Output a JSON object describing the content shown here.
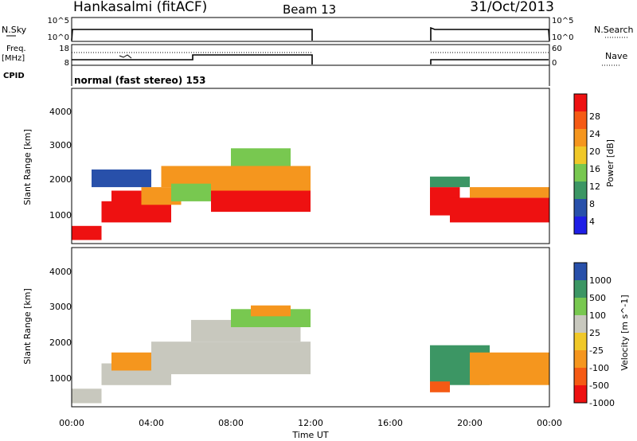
{
  "header": {
    "title": "Hankasalmi (fitACF)",
    "beam": "Beam 13",
    "date": "31/Oct/2013"
  },
  "nsky_panel": {
    "left_label": "N.Sky",
    "right_label": "N.Search",
    "tick_top": "10^5",
    "tick_bottom": "10^0",
    "right_tick_top": "10^5",
    "right_tick_bottom": "10^0"
  },
  "freq_panel": {
    "left_label_top": "Freq.",
    "left_label_unit": "[MHz]",
    "tick_top": "18",
    "tick_bottom": "8",
    "right_label": "Nave",
    "right_tick_top": "60",
    "right_tick_bottom": "0"
  },
  "cpid_panel": {
    "label": "CPID",
    "mode": "normal (fast stereo) 153"
  },
  "x_axis": {
    "label": "Time UT",
    "ticks": [
      "00:00",
      "04:00",
      "08:00",
      "12:00",
      "16:00",
      "20:00",
      "00:00"
    ]
  },
  "range_axis": {
    "label": "Slant Range [km]",
    "ticks": [
      "1000",
      "2000",
      "3000",
      "4000"
    ]
  },
  "colors": {
    "red": "#ee1111",
    "orange_red": "#f55a14",
    "orange": "#f5961e",
    "yellow_orange": "#f0c828",
    "green": "#78c850",
    "teal": "#3c9664",
    "blue": "#2850aa",
    "bright_blue": "#1e1ee6",
    "gray": "#c8c8be"
  },
  "chart_data": [
    {
      "type": "heatmap",
      "name": "power",
      "xlim": [
        0,
        24
      ],
      "ylim": [
        200,
        4600
      ],
      "colorbar": {
        "label": "Power [dB]",
        "ticks": [
          "4",
          "8",
          "12",
          "16",
          "20",
          "24",
          "28"
        ],
        "colors": [
          "#1e1ee6",
          "#2850aa",
          "#3c9664",
          "#78c850",
          "#f0c828",
          "#f5961e",
          "#f55a14",
          "#ee1111"
        ]
      },
      "regions": [
        {
          "x0": 0.0,
          "x1": 1.5,
          "y0": 300,
          "y1": 700,
          "level": "red"
        },
        {
          "x0": 1.5,
          "x1": 5.0,
          "y0": 800,
          "y1": 1400,
          "level": "red"
        },
        {
          "x0": 2.0,
          "x1": 3.5,
          "y0": 1300,
          "y1": 1700,
          "level": "red"
        },
        {
          "x0": 3.5,
          "x1": 5.5,
          "y0": 1300,
          "y1": 1800,
          "level": "orange"
        },
        {
          "x0": 4.5,
          "x1": 7.5,
          "y0": 1800,
          "y1": 2400,
          "level": "orange"
        },
        {
          "x0": 5.0,
          "x1": 9.0,
          "y0": 1400,
          "y1": 1900,
          "level": "green"
        },
        {
          "x0": 7.0,
          "x1": 12.0,
          "y0": 1100,
          "y1": 1700,
          "level": "red"
        },
        {
          "x0": 7.0,
          "x1": 12.0,
          "y0": 1700,
          "y1": 2400,
          "level": "orange"
        },
        {
          "x0": 8.0,
          "x1": 11.0,
          "y0": 2400,
          "y1": 2900,
          "level": "green"
        },
        {
          "x0": 1.0,
          "x1": 4.0,
          "y0": 1800,
          "y1": 2300,
          "level": "blue"
        },
        {
          "x0": 18.0,
          "x1": 19.5,
          "y0": 1000,
          "y1": 1800,
          "level": "red"
        },
        {
          "x0": 19.0,
          "x1": 24.0,
          "y0": 800,
          "y1": 1500,
          "level": "red"
        },
        {
          "x0": 20.0,
          "x1": 24.0,
          "y0": 1500,
          "y1": 1800,
          "level": "orange"
        },
        {
          "x0": 18.0,
          "x1": 20.0,
          "y0": 1800,
          "y1": 2100,
          "level": "teal"
        }
      ]
    },
    {
      "type": "heatmap",
      "name": "velocity",
      "xlim": [
        0,
        24
      ],
      "ylim": [
        200,
        4600
      ],
      "colorbar": {
        "label": "Velocity [m s^-1]",
        "ticks": [
          "1000",
          "500",
          "100",
          "25",
          "-25",
          "-100",
          "-500",
          "-1000"
        ],
        "colors": [
          "#2850aa",
          "#3c9664",
          "#78c850",
          "#c8c8be",
          "#f0c828",
          "#f5961e",
          "#f55a14",
          "#ee1111"
        ]
      },
      "regions": [
        {
          "x0": 0.0,
          "x1": 1.5,
          "y0": 300,
          "y1": 700,
          "level": "gray"
        },
        {
          "x0": 1.5,
          "x1": 5.0,
          "y0": 800,
          "y1": 1400,
          "level": "gray"
        },
        {
          "x0": 2.0,
          "x1": 4.0,
          "y0": 1200,
          "y1": 1700,
          "level": "orange"
        },
        {
          "x0": 4.0,
          "x1": 12.0,
          "y0": 1100,
          "y1": 2000,
          "level": "gray"
        },
        {
          "x0": 6.0,
          "x1": 11.5,
          "y0": 2000,
          "y1": 2600,
          "level": "gray"
        },
        {
          "x0": 8.0,
          "x1": 12.0,
          "y0": 2400,
          "y1": 2900,
          "level": "green"
        },
        {
          "x0": 9.0,
          "x1": 11.0,
          "y0": 2700,
          "y1": 3000,
          "level": "orange"
        },
        {
          "x0": 18.0,
          "x1": 21.0,
          "y0": 800,
          "y1": 1900,
          "level": "teal"
        },
        {
          "x0": 20.0,
          "x1": 24.0,
          "y0": 800,
          "y1": 1700,
          "level": "orange"
        },
        {
          "x0": 18.0,
          "x1": 19.0,
          "y0": 600,
          "y1": 900,
          "level": "orange_red"
        }
      ]
    }
  ]
}
